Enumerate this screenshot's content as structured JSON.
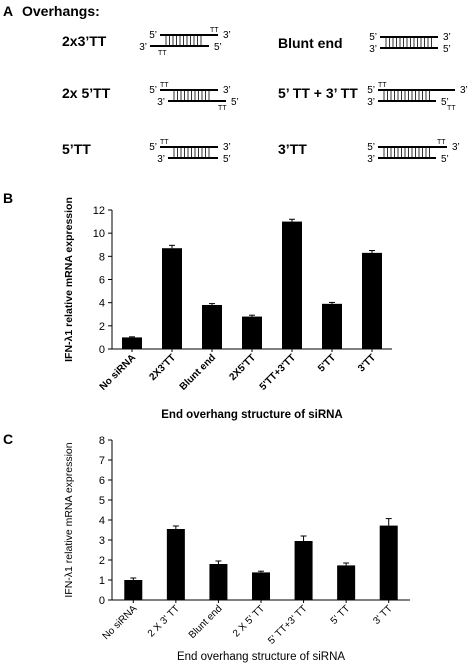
{
  "panel_a": {
    "letter": "A",
    "title": "Overhangs:",
    "items": [
      {
        "label": "2x3’TT",
        "left_top": "5’",
        "right_top": "3’",
        "left_bottom": "3’",
        "right_bottom": "5’",
        "tt_top": "TT",
        "tt_bottom": "TT"
      },
      {
        "label": "Blunt end",
        "left_top": "5’",
        "right_top": "3’",
        "left_bottom": "3’",
        "right_bottom": "5’",
        "tt_top": "",
        "tt_bottom": ""
      },
      {
        "label": "2x 5’TT",
        "left_top": "5’",
        "right_top": "3’",
        "left_bottom": "3’",
        "right_bottom": "5’",
        "tt_top": "TT",
        "tt_bottom": "TT"
      },
      {
        "label": "5’ TT  + 3’ TT",
        "left_top": "5’",
        "right_top": "3’",
        "left_bottom": "3’",
        "right_bottom": "5’",
        "tt_top": "TT",
        "tt_bottom": "TT"
      },
      {
        "label": "5’TT",
        "left_top": "5’",
        "right_top": "3’",
        "left_bottom": "3’",
        "right_bottom": "5’",
        "tt_top": "TT",
        "tt_bottom": ""
      },
      {
        "label": "3’TT",
        "left_top": "5’",
        "right_top": "3’",
        "left_bottom": "3’",
        "right_bottom": "5’",
        "tt_top": "TT",
        "tt_bottom": ""
      }
    ]
  },
  "chart_data": [
    {
      "panel": "B",
      "type": "bar",
      "categories": [
        "No siRNA",
        "2X3'TT",
        "Blunt end",
        "2X5'TT",
        "5'TT+3'TT",
        "5'TT",
        "3'TT"
      ],
      "values": [
        1.0,
        8.7,
        3.8,
        2.8,
        11.0,
        3.9,
        8.3
      ],
      "errors": [
        0.05,
        0.25,
        0.12,
        0.12,
        0.2,
        0.12,
        0.2
      ],
      "xlabel": "End overhang structure of siRNA",
      "ylabel": "IFN-λ1 relative mRNA expression",
      "ylim": [
        0,
        12
      ],
      "yticks": [
        "0",
        "2",
        "4",
        "6",
        "8",
        "10",
        "12"
      ],
      "bar_color": "#000000"
    },
    {
      "panel": "C",
      "type": "bar",
      "categories": [
        "No siRNA",
        "2 X 3' TT",
        "Blunt end",
        "2 X 5' TT",
        "5' TT+3' TT",
        "5' TT",
        "3' TT"
      ],
      "values": [
        1.0,
        3.55,
        1.8,
        1.38,
        2.95,
        1.73,
        3.72
      ],
      "errors": [
        0.1,
        0.15,
        0.15,
        0.06,
        0.25,
        0.12,
        0.35
      ],
      "xlabel": "End overhang structure of siRNA",
      "ylabel": "IFN-λ1 relative mRNA expression",
      "ylim": [
        0,
        8
      ],
      "yticks": [
        "0",
        "1",
        "2",
        "3",
        "4",
        "5",
        "6",
        "7",
        "8"
      ],
      "bar_color": "#000000"
    }
  ]
}
